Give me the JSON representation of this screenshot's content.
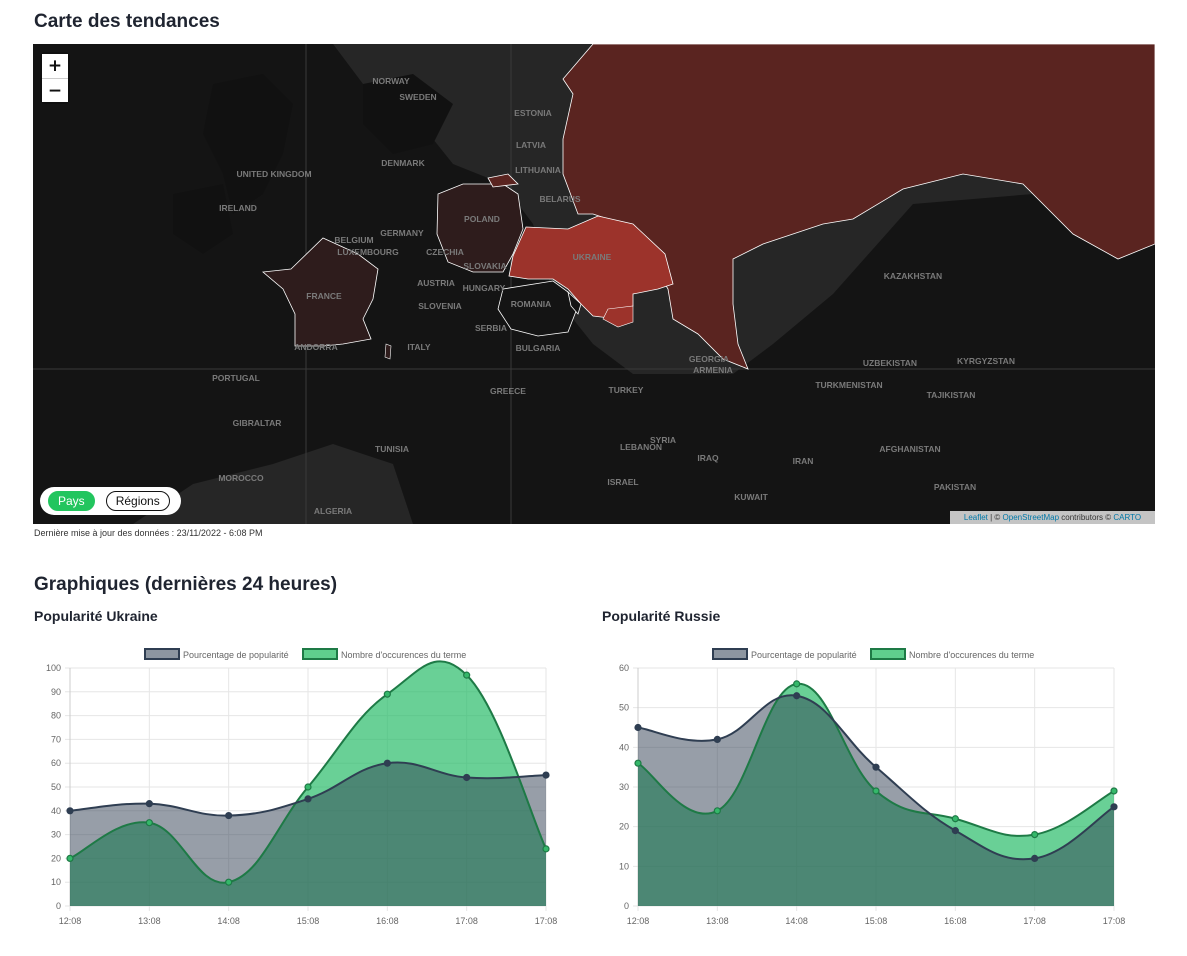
{
  "headings": {
    "map_title": "Carte des tendances",
    "charts_title": "Graphiques (dernières 24 heures)"
  },
  "map": {
    "zoom_in": "+",
    "zoom_out": "−",
    "toggle_active": "Pays",
    "toggle_inactive": "Régions",
    "attribution_leaflet": "Leaflet",
    "attribution_sep": " | © ",
    "attribution_osm": "OpenStreetMap",
    "attribution_contrib": " contributors © ",
    "attribution_carto": "CARTO",
    "labels": [
      "NORWAY",
      "SWEDEN",
      "ESTONIA",
      "LATVIA",
      "LITHUANIA",
      "BELARUS",
      "DENMARK",
      "UNITED KINGDOM",
      "IRELAND",
      "POLAND",
      "GERMANY",
      "BELGIUM",
      "LUXEMBOURG",
      "CZECHIA",
      "SLOVAKIA",
      "AUSTRIA",
      "HUNGARY",
      "FRANCE",
      "SLOVENIA",
      "UKRAINE",
      "ROMANIA",
      "SERBIA",
      "BULGARIA",
      "ITALY",
      "ANDORRA",
      "PORTUGAL",
      "GIBRALTAR",
      "MOROCCO",
      "ALGERIA",
      "TUNISIA",
      "GREECE",
      "TURKEY",
      "GEORGIA",
      "ARMENIA",
      "SYRIA",
      "LEBANON",
      "ISRAEL",
      "IRAQ",
      "IRAN",
      "KUWAIT",
      "KAZAKHSTAN",
      "UZBEKISTAN",
      "KYRGYZSTAN",
      "TURKMENISTAN",
      "TAJIKISTAN",
      "AFGHANISTAN",
      "PAKISTAN"
    ],
    "colors": {
      "background": "#262626",
      "russia": "#5a2420",
      "ukraine": "#9c332b",
      "highlight_low": "#2e1c1c",
      "border": "#ffffff"
    }
  },
  "updated_text": "Dernière mise à jour des données : 23/11/2022 - 6:08 PM",
  "chart_data": [
    {
      "id": "ukraine",
      "type": "area",
      "title": "Popularité Ukraine",
      "x": [
        "12:08",
        "13:08",
        "14:08",
        "15:08",
        "16:08",
        "17:08",
        "17:08"
      ],
      "ylim": [
        0,
        100
      ],
      "yticks": [
        0,
        10,
        20,
        30,
        40,
        50,
        60,
        70,
        80,
        90,
        100
      ],
      "grid": true,
      "legend": "top-center",
      "series": [
        {
          "name": "Pourcentage de popularité",
          "values": [
            40,
            43,
            38,
            45,
            60,
            54,
            55
          ],
          "color": "#2f3e52"
        },
        {
          "name": "Nombre d'occurences du terme",
          "values": [
            20,
            35,
            10,
            50,
            89,
            97,
            24
          ],
          "color": "#1e7a46"
        }
      ]
    },
    {
      "id": "russie",
      "type": "area",
      "title": "Popularité Russie",
      "x": [
        "12:08",
        "13:08",
        "14:08",
        "15:08",
        "16:08",
        "17:08",
        "17:08"
      ],
      "ylim": [
        0,
        60
      ],
      "yticks": [
        0,
        10,
        20,
        30,
        40,
        50,
        60
      ],
      "grid": true,
      "legend": "top-center",
      "series": [
        {
          "name": "Pourcentage de popularité",
          "values": [
            45,
            42,
            53,
            35,
            19,
            12,
            25
          ],
          "color": "#2f3e52"
        },
        {
          "name": "Nombre d'occurences du terme",
          "values": [
            36,
            24,
            56,
            29,
            22,
            18,
            29
          ],
          "color": "#1e7a46"
        }
      ]
    }
  ]
}
